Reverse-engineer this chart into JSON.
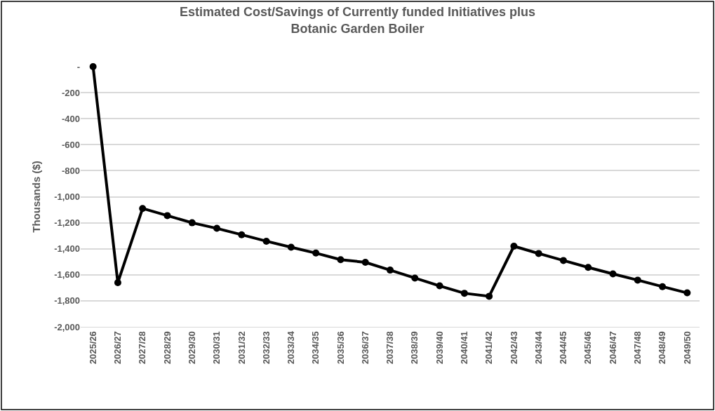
{
  "chart_data": {
    "type": "line",
    "title": "Estimated Cost/Savings of Currently funded Initiatives plus Botanic Garden Boiler",
    "ylabel": "Thousands ($)",
    "categories": [
      "2025/26",
      "2026/27",
      "2027/28",
      "2028/29",
      "2029/30",
      "2030/31",
      "2031/32",
      "2032/33",
      "2033/34",
      "2034/35",
      "2035/36",
      "2036/37",
      "2037/38",
      "2038/39",
      "2039/40",
      "2040/41",
      "2041/42",
      "2042/43",
      "2043/44",
      "2044/45",
      "2045/46",
      "2046/47",
      "2047/48",
      "2048/49",
      "2049/50"
    ],
    "series": [
      {
        "color": "#000000",
        "values": [
          0,
          -1660,
          -1090,
          -1145,
          -1200,
          -1243,
          -1292,
          -1342,
          -1388,
          -1433,
          -1484,
          -1504,
          -1564,
          -1625,
          -1685,
          -1742,
          -1765,
          -1380,
          -1436,
          -1490,
          -1543,
          -1593,
          -1641,
          -1691,
          -1739
        ]
      }
    ],
    "ylim": [
      -2000,
      0
    ],
    "yticks": [
      {
        "value": 0,
        "label": "-"
      },
      -200,
      -400,
      -600,
      -800,
      {
        "value": -1000,
        "label": "-1,000"
      },
      {
        "value": -1200,
        "label": "-1,200"
      },
      {
        "value": -1400,
        "label": "-1,400"
      },
      {
        "value": -1600,
        "label": "-1,600"
      },
      {
        "value": -1800,
        "label": "-1,800"
      },
      {
        "value": -2000,
        "label": "-2,000"
      }
    ],
    "grid": "y",
    "marker": "circle",
    "line_style": "solid"
  }
}
